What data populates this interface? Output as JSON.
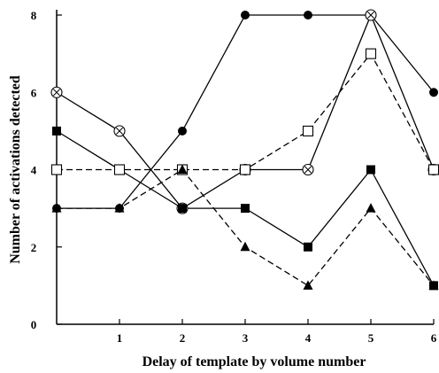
{
  "chart_data": {
    "type": "line",
    "title": "",
    "xlabel": "Delay of template by volume number",
    "ylabel": "Number of activations detected",
    "xlim": [
      0,
      6
    ],
    "ylim": [
      0,
      8
    ],
    "x_ticks": [
      1,
      2,
      3,
      4,
      5,
      6
    ],
    "y_ticks": [
      0,
      2,
      4,
      6,
      8
    ],
    "x_tick_labels": [
      "1",
      "2",
      "3",
      "4",
      "5",
      "6"
    ],
    "y_tick_labels": [
      "0",
      "2",
      "4",
      "6",
      "8"
    ],
    "grid": false,
    "legend": "none",
    "x": [
      0,
      1,
      2,
      3,
      4,
      5,
      6
    ],
    "series": [
      {
        "marker": "filled-circle",
        "line": "solid",
        "color": "#000000",
        "values": [
          3,
          3,
          5,
          8,
          8,
          8,
          6
        ]
      },
      {
        "marker": "open-circle-cross",
        "line": "solid",
        "color": "#000000",
        "values": [
          6,
          5,
          3,
          4,
          4,
          8,
          4
        ]
      },
      {
        "marker": "filled-square",
        "line": "solid",
        "color": "#000000",
        "values": [
          5,
          4,
          3,
          3,
          2,
          4,
          1
        ]
      },
      {
        "marker": "open-square",
        "line": "dashed",
        "color": "#000000",
        "values": [
          4,
          4,
          4,
          4,
          5,
          7,
          4
        ]
      },
      {
        "marker": "filled-triangle",
        "line": "dashed",
        "color": "#000000",
        "values": [
          3,
          3,
          4,
          2,
          1,
          3,
          1
        ]
      }
    ]
  }
}
